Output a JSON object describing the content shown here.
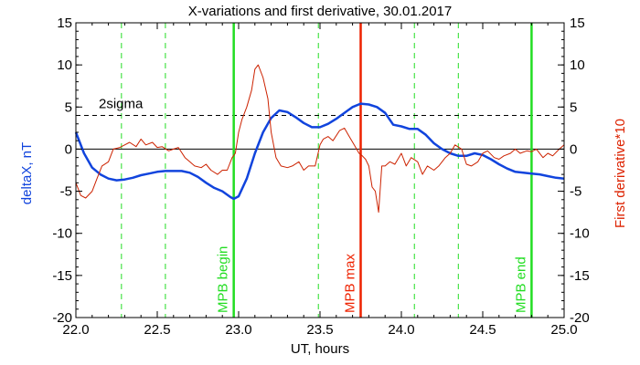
{
  "chart_data": {
    "type": "line",
    "title": "X-variations and first derivative, 30.01.2017",
    "xlabel": "UT, hours",
    "ylabel_left": "deltaX, nT",
    "ylabel_right": "First derivative*10",
    "xlim": [
      22.0,
      25.0
    ],
    "ylim": [
      -20,
      15
    ],
    "x_ticks": [
      "22.0",
      "22.5",
      "23.0",
      "23.5",
      "24.0",
      "24.5",
      "25.0"
    ],
    "x_tick_values": [
      22.0,
      22.5,
      23.0,
      23.5,
      24.0,
      24.5,
      25.0
    ],
    "y_ticks": [
      "-20",
      "-15",
      "-10",
      "-5",
      "0",
      "5",
      "10",
      "15"
    ],
    "y_tick_values": [
      -20,
      -15,
      -10,
      -5,
      0,
      5,
      10,
      15
    ],
    "grid": false,
    "colors": {
      "deltaX": "#1144dd",
      "derivative": "#cc2200",
      "green": "#22dd22",
      "red": "#ee2200",
      "threshold": "#000000"
    },
    "threshold": {
      "label": "2sigma",
      "y": 4
    },
    "zero_line": 0,
    "solid_markers": [
      {
        "label": "MPB begin",
        "x": 22.97,
        "color": "#22dd22"
      },
      {
        "label": "MPB max",
        "x": 23.75,
        "color": "#ee2200"
      },
      {
        "label": "MPB end",
        "x": 24.8,
        "color": "#22dd22"
      }
    ],
    "dashed_markers": [
      22.28,
      22.55,
      23.49,
      24.08,
      24.35
    ],
    "series": [
      {
        "key": "deltaX",
        "x": [
          22.0,
          22.05,
          22.1,
          22.15,
          22.2,
          22.25,
          22.3,
          22.35,
          22.4,
          22.45,
          22.5,
          22.55,
          22.6,
          22.65,
          22.7,
          22.75,
          22.8,
          22.85,
          22.9,
          22.95,
          22.97,
          23.0,
          23.05,
          23.1,
          23.15,
          23.2,
          23.25,
          23.3,
          23.35,
          23.4,
          23.45,
          23.5,
          23.55,
          23.6,
          23.65,
          23.7,
          23.75,
          23.8,
          23.85,
          23.9,
          23.95,
          24.0,
          24.05,
          24.1,
          24.15,
          24.2,
          24.25,
          24.3,
          24.35,
          24.4,
          24.45,
          24.5,
          24.55,
          24.6,
          24.65,
          24.7,
          24.75,
          24.8,
          24.85,
          24.9,
          24.95,
          25.0
        ],
        "y": [
          2.0,
          -0.5,
          -2.2,
          -3.0,
          -3.5,
          -3.7,
          -3.6,
          -3.4,
          -3.1,
          -2.9,
          -2.7,
          -2.6,
          -2.6,
          -2.6,
          -2.8,
          -3.3,
          -4.0,
          -4.6,
          -5.0,
          -5.7,
          -5.9,
          -5.6,
          -3.5,
          -0.5,
          2.0,
          3.7,
          4.6,
          4.4,
          3.8,
          3.1,
          2.6,
          2.6,
          3.0,
          3.6,
          4.3,
          5.0,
          5.4,
          5.3,
          5.0,
          4.3,
          2.9,
          2.7,
          2.4,
          2.4,
          1.7,
          0.7,
          0.0,
          -0.5,
          -0.8,
          -0.8,
          -0.5,
          -0.7,
          -1.2,
          -1.8,
          -2.3,
          -2.7,
          -2.8,
          -2.9,
          -3.0,
          -3.2,
          -3.4,
          -3.5
        ]
      },
      {
        "key": "derivative",
        "x": [
          22.0,
          22.03,
          22.06,
          22.1,
          22.13,
          22.16,
          22.2,
          22.23,
          22.27,
          22.3,
          22.33,
          22.37,
          22.4,
          22.43,
          22.47,
          22.5,
          22.53,
          22.57,
          22.6,
          22.63,
          22.67,
          22.7,
          22.73,
          22.77,
          22.8,
          22.83,
          22.87,
          22.9,
          22.93,
          22.96,
          22.98,
          23.0,
          23.02,
          23.05,
          23.08,
          23.1,
          23.12,
          23.15,
          23.18,
          23.2,
          23.23,
          23.26,
          23.3,
          23.33,
          23.37,
          23.4,
          23.43,
          23.47,
          23.5,
          23.52,
          23.55,
          23.58,
          23.62,
          23.65,
          23.68,
          23.71,
          23.74,
          23.76,
          23.78,
          23.8,
          23.82,
          23.84,
          23.86,
          23.88,
          23.9,
          23.93,
          23.96,
          24.0,
          24.03,
          24.06,
          24.1,
          24.13,
          24.16,
          24.2,
          24.23,
          24.27,
          24.3,
          24.33,
          24.37,
          24.4,
          24.43,
          24.47,
          24.5,
          24.53,
          24.57,
          24.6,
          24.63,
          24.67,
          24.7,
          24.73,
          24.77,
          24.8,
          24.83,
          24.87,
          24.9,
          24.93,
          24.97,
          25.0
        ],
        "y": [
          -4.0,
          -5.5,
          -5.8,
          -5.0,
          -3.5,
          -2.0,
          -1.5,
          0.0,
          0.2,
          0.5,
          0.8,
          0.3,
          1.2,
          0.5,
          0.8,
          0.2,
          0.3,
          -0.2,
          0.0,
          0.2,
          -1.0,
          -1.5,
          -2.0,
          -2.2,
          -1.8,
          -2.5,
          -3.0,
          -2.5,
          -2.5,
          -1.0,
          -0.5,
          2.0,
          3.5,
          5.0,
          7.0,
          9.5,
          10.0,
          8.5,
          6.0,
          2.0,
          -1.0,
          -2.0,
          -2.2,
          -2.0,
          -1.5,
          -2.5,
          -2.0,
          -2.0,
          0.5,
          1.2,
          1.5,
          1.0,
          2.2,
          2.5,
          1.5,
          0.5,
          -0.5,
          -0.8,
          -1.2,
          -2.0,
          -4.5,
          -5.0,
          -7.5,
          -2.0,
          -2.0,
          -1.5,
          -1.8,
          -0.5,
          -2.0,
          -1.0,
          -1.5,
          -3.0,
          -2.0,
          -2.5,
          -2.0,
          -1.0,
          -0.5,
          0.5,
          0.0,
          -1.8,
          -2.0,
          -1.5,
          -0.5,
          -0.2,
          -1.0,
          -1.2,
          -0.8,
          -0.5,
          0.0,
          -0.5,
          -0.2,
          -0.3,
          0.0,
          -1.0,
          -0.5,
          -0.8,
          0.0,
          0.5
        ]
      }
    ]
  }
}
